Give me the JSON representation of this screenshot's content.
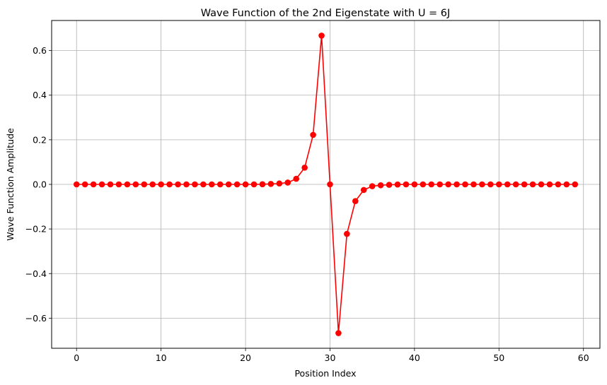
{
  "chart_data": {
    "type": "line",
    "title": "Wave Function of the 2nd Eigenstate with U = 6J",
    "xlabel": "Position Index",
    "ylabel": "Wave Function Amplitude",
    "xlim": [
      -2.95,
      61.95
    ],
    "ylim": [
      -0.735,
      0.735
    ],
    "xticks": [
      0,
      10,
      20,
      30,
      40,
      50,
      60
    ],
    "xtick_labels": [
      "0",
      "10",
      "20",
      "30",
      "40",
      "50",
      "60"
    ],
    "yticks": [
      -0.6,
      -0.4,
      -0.2,
      0.0,
      0.2,
      0.4,
      0.6
    ],
    "ytick_labels": [
      "−0.6",
      "−0.4",
      "−0.2",
      "0.0",
      "0.2",
      "0.4",
      "0.6"
    ],
    "grid": true,
    "line_color": "#ff0000",
    "marker": "circle",
    "x": [
      0,
      1,
      2,
      3,
      4,
      5,
      6,
      7,
      8,
      9,
      10,
      11,
      12,
      13,
      14,
      15,
      16,
      17,
      18,
      19,
      20,
      21,
      22,
      23,
      24,
      25,
      26,
      27,
      28,
      29,
      30,
      31,
      32,
      33,
      34,
      35,
      36,
      37,
      38,
      39,
      40,
      41,
      42,
      43,
      44,
      45,
      46,
      47,
      48,
      49,
      50,
      51,
      52,
      53,
      54,
      55,
      56,
      57,
      58,
      59
    ],
    "y": [
      0,
      0,
      0,
      0,
      0,
      0,
      0,
      0,
      0,
      0,
      0,
      0,
      0,
      0,
      0,
      0,
      0,
      0,
      0,
      0,
      0,
      0,
      0.0005,
      0.002,
      0.004,
      0.008,
      0.025,
      0.075,
      0.222,
      0.667,
      0,
      -0.667,
      -0.222,
      -0.075,
      -0.025,
      -0.008,
      -0.004,
      -0.002,
      -0.0005,
      0,
      0,
      0,
      0,
      0,
      0,
      0,
      0,
      0,
      0,
      0,
      0,
      0,
      0,
      0,
      0,
      0,
      0,
      0,
      0,
      0
    ]
  }
}
